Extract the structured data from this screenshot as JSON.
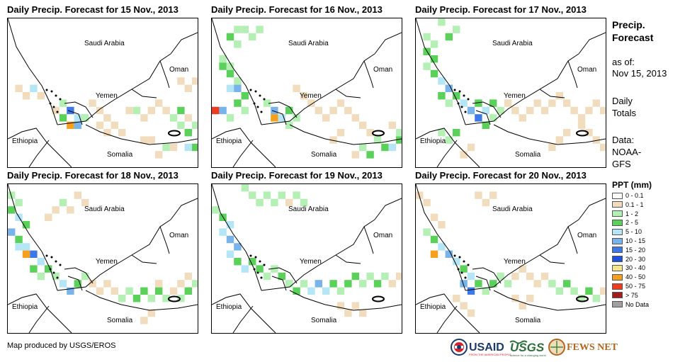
{
  "panels": [
    {
      "title": "Daily Precip. Forecast for 15 Nov., 2013"
    },
    {
      "title": "Daily Precip. Forecast for 16 Nov., 2013"
    },
    {
      "title": "Daily Precip. Forecast for 17 Nov., 2013"
    },
    {
      "title": "Daily Precip. Forecast for 18 Nov., 2013"
    },
    {
      "title": "Daily Precip. Forecast for 19 Nov., 2013"
    },
    {
      "title": "Daily Precip. Forecast for 20 Nov., 2013"
    }
  ],
  "map_labels": {
    "saudi_arabia": "Saudi Arabia",
    "oman": "Oman",
    "yemen": "Yemen",
    "ethiopia": "Ethiopia",
    "somalia": "Somalia"
  },
  "sidebar": {
    "title_line1": "Precip.",
    "title_line2": "Forecast",
    "asof_line1": "as of:",
    "asof_line2": "Nov 15, 2013",
    "daily_line1": "Daily",
    "daily_line2": "Totals",
    "data_line1": "Data:",
    "data_line2": "NOAA-",
    "data_line3": "GFS"
  },
  "legend": {
    "title": "PPT (mm)",
    "items": [
      {
        "label": "0 - 0.1",
        "color": "#ffffff"
      },
      {
        "label": "0.1 - 1",
        "color": "#f2dcbe"
      },
      {
        "label": "1 - 2",
        "color": "#b4f0b4"
      },
      {
        "label": "2 - 5",
        "color": "#5ad25a"
      },
      {
        "label": "5 - 10",
        "color": "#b4e6f5"
      },
      {
        "label": "10 - 15",
        "color": "#78b4eb"
      },
      {
        "label": "15 - 20",
        "color": "#3c78e6"
      },
      {
        "label": "20 - 30",
        "color": "#1e50dc"
      },
      {
        "label": "30 - 40",
        "color": "#f5e68c"
      },
      {
        "label": "40 - 50",
        "color": "#f5a01e"
      },
      {
        "label": "50 - 75",
        "color": "#f03c1e"
      },
      {
        "label": "> 75",
        "color": "#a01e1e"
      },
      {
        "label": "No Data",
        "color": "#a0a0a0"
      }
    ]
  },
  "footer": {
    "credit": "Map produced by USGS/EROS",
    "logos": [
      "USAID",
      "USGS",
      "FEWS NET"
    ],
    "usaid_tagline": "FROM THE AMERICAN PEOPLE",
    "usgs_tagline": "science for a changing world"
  }
}
